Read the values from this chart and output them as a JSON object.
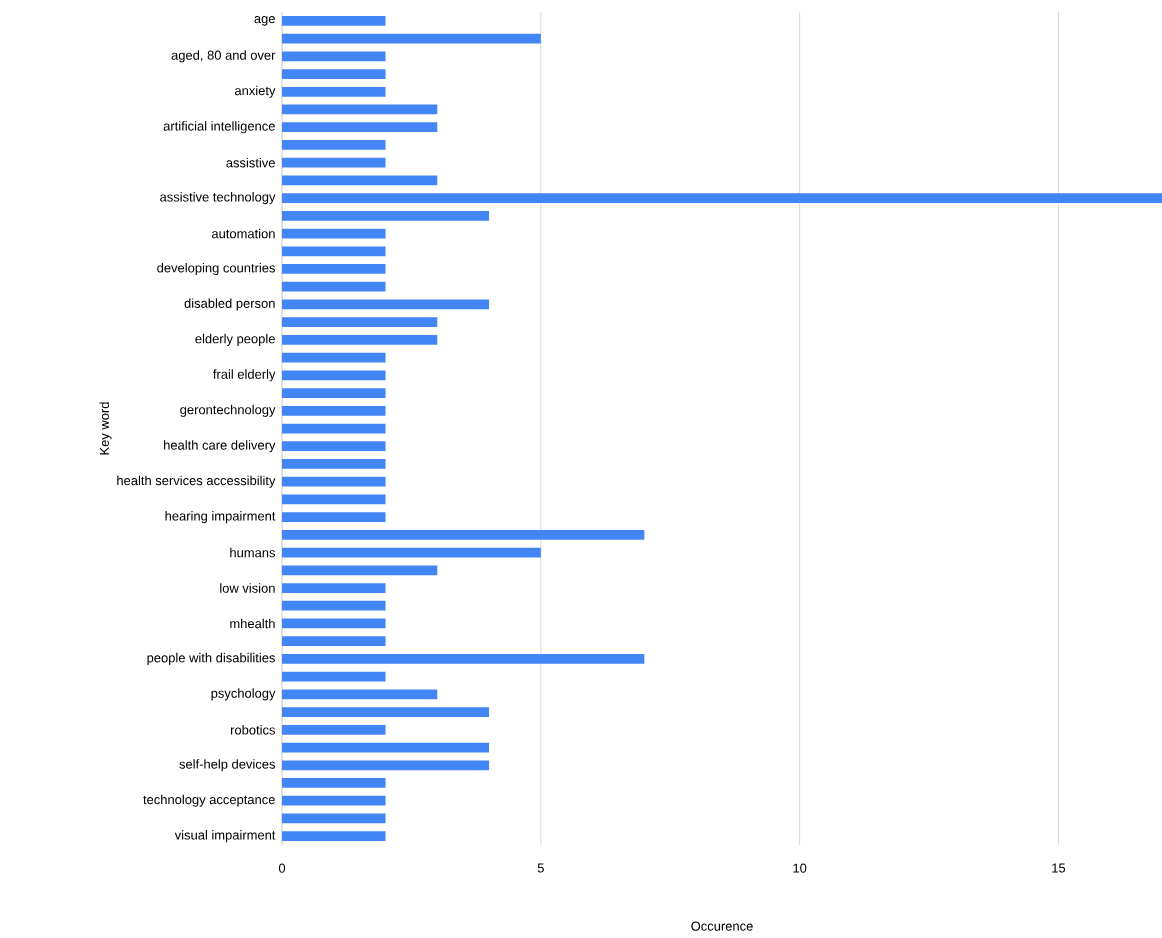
{
  "chart_data": {
    "type": "bar",
    "orientation": "horizontal",
    "xlabel": "Occurence",
    "ylabel": "Key word",
    "categories": [
      "age",
      null,
      "aged, 80 and over",
      null,
      "anxiety",
      null,
      "artificial intelligence",
      null,
      "assistive",
      null,
      "assistive technology",
      null,
      "automation",
      null,
      "developing countries",
      null,
      "disabled person",
      null,
      "elderly people",
      null,
      "frail elderly",
      null,
      "gerontechnology",
      null,
      "health care delivery",
      null,
      "health services accessibility",
      null,
      "hearing impairment",
      null,
      "humans",
      null,
      "low vision",
      null,
      "mhealth",
      null,
      "people with disabilities",
      null,
      "psychology",
      null,
      "robotics",
      null,
      "self-help devices",
      null,
      "technology acceptance",
      null,
      "visual impairment"
    ],
    "values": [
      2,
      5,
      2,
      2,
      2,
      3,
      3,
      2,
      2,
      3,
      17,
      4,
      2,
      2,
      2,
      2,
      4,
      3,
      3,
      2,
      2,
      2,
      2,
      2,
      2,
      2,
      2,
      2,
      2,
      7,
      5,
      3,
      2,
      2,
      2,
      2,
      7,
      2,
      3,
      4,
      2,
      4,
      4,
      2,
      2,
      2,
      2
    ],
    "color": "#4285f4",
    "xlim": [
      0,
      17
    ],
    "xticks": [
      0,
      5,
      10,
      15
    ],
    "grid": "x"
  }
}
